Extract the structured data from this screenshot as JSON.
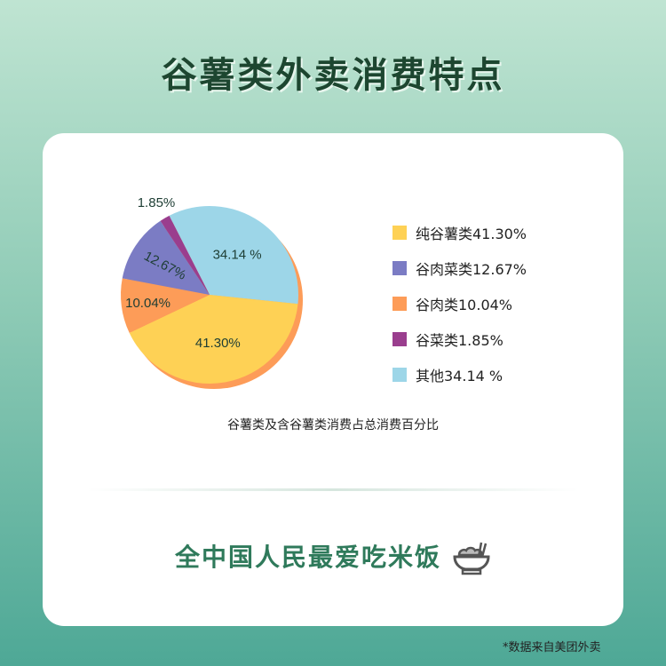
{
  "title": "谷薯类外卖消费特点",
  "chart_data": {
    "type": "pie",
    "caption": "谷薯类及含谷薯类消费占总消费百分比",
    "slices": [
      {
        "name": "其他",
        "legend": "其他34.14 %",
        "label": "34.14 %",
        "value": 34.14,
        "color": "#9dd6e8"
      },
      {
        "name": "纯谷薯类",
        "legend": "纯谷薯类41.30%",
        "label": "41.30%",
        "value": 41.3,
        "color": "#fed155"
      },
      {
        "name": "谷肉类",
        "legend": "谷肉类10.04%",
        "label": "10.04%",
        "value": 10.04,
        "color": "#fd9c58"
      },
      {
        "name": "谷肉菜类",
        "legend": "谷肉菜类12.67%",
        "label": "12.67%",
        "value": 12.67,
        "color": "#7b7cc4"
      },
      {
        "name": "谷菜类",
        "legend": "谷菜类1.85%",
        "label": "1.85%",
        "value": 1.85,
        "color": "#9a3e8e"
      }
    ],
    "legend_order": [
      1,
      3,
      2,
      4,
      0
    ],
    "legend_placement": "right"
  },
  "slogan": "全中国人民最爱吃米饭",
  "slogan_icon": "rice-bowl-icon",
  "source": "*数据来自美团外卖"
}
